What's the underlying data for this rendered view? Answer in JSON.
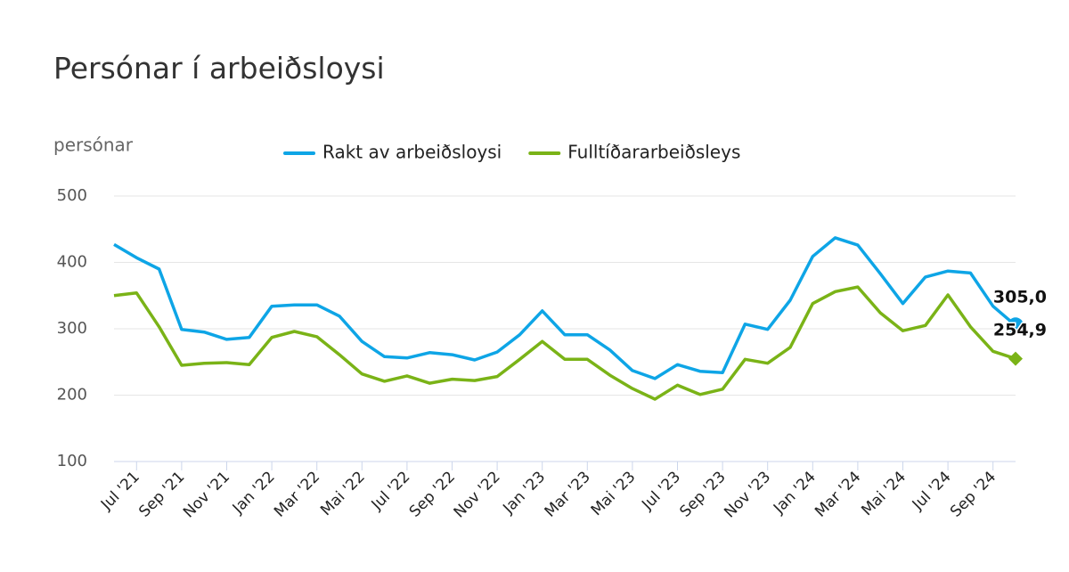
{
  "chart_data": {
    "type": "line",
    "title": "Persónar í arbeiðsloysi",
    "y_axis_label": "persónar",
    "categories": [
      null,
      "Jul '21",
      null,
      "Sep '21",
      null,
      "Nov '21",
      null,
      "Jan '22",
      null,
      "Mar '22",
      null,
      "Mai '22",
      null,
      "Jul '22",
      null,
      "Sep '22",
      null,
      "Nov '22",
      null,
      "Jan '23",
      null,
      "Mar '23",
      null,
      "Mai '23",
      null,
      "Jul '23",
      null,
      "Sep '23",
      null,
      "Nov '23",
      null,
      "Jan '24",
      null,
      "Mar '24",
      null,
      "Mai '24",
      null,
      "Jul '24",
      null,
      "Sep '24",
      null
    ],
    "series": [
      {
        "name": "Rakt av arbeiðsloysi",
        "color": "#0ea5e6",
        "marker": "circle",
        "values": [
          427,
          407,
          390,
          299,
          295,
          284,
          287,
          334,
          336,
          336,
          319,
          281,
          258,
          256,
          264,
          261,
          253,
          265,
          291,
          327,
          291,
          291,
          268,
          237,
          225,
          246,
          236,
          234,
          307,
          299,
          343,
          409,
          437,
          426,
          383,
          338,
          378,
          387,
          384,
          334,
          305.0
        ],
        "value_labels": [
          null,
          null,
          null,
          null,
          null,
          null,
          null,
          null,
          null,
          null,
          null,
          null,
          null,
          null,
          null,
          null,
          null,
          null,
          null,
          null,
          null,
          null,
          null,
          null,
          null,
          null,
          null,
          null,
          null,
          null,
          null,
          null,
          null,
          null,
          null,
          null,
          null,
          null,
          null,
          null,
          "305,0"
        ]
      },
      {
        "name": "Fulltíðararbeiðsleys",
        "color": "#7ab317",
        "marker": "diamond",
        "values": [
          350,
          354,
          303,
          245,
          248,
          249,
          246,
          287,
          296,
          288,
          261,
          232,
          221,
          229,
          218,
          224,
          222,
          228,
          254,
          281,
          254,
          254,
          230,
          210,
          194,
          215,
          201,
          209,
          254,
          248,
          272,
          338,
          356,
          363,
          324,
          297,
          305,
          351,
          303,
          266,
          254.9
        ],
        "value_labels": [
          null,
          null,
          null,
          null,
          null,
          null,
          null,
          null,
          null,
          null,
          null,
          null,
          null,
          null,
          null,
          null,
          null,
          null,
          null,
          null,
          null,
          null,
          null,
          null,
          null,
          null,
          null,
          null,
          null,
          null,
          null,
          null,
          null,
          null,
          null,
          null,
          null,
          null,
          null,
          null,
          "254,9"
        ]
      }
    ],
    "ylim": [
      100,
      500
    ],
    "yticks": [
      100,
      200,
      300,
      400,
      500
    ],
    "grid": true
  }
}
